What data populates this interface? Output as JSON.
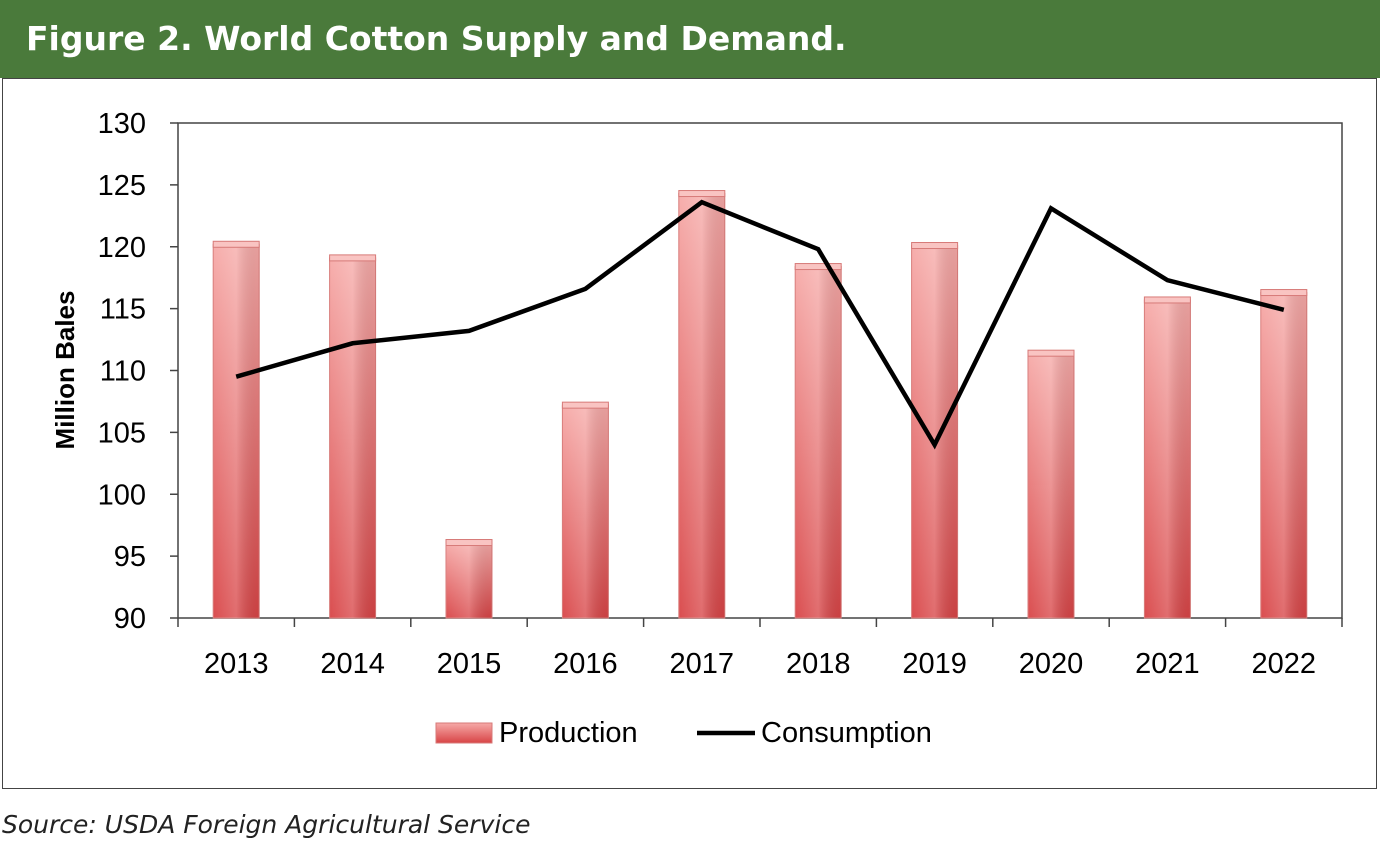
{
  "header": {
    "title": "Figure 2. World Cotton Supply and Demand."
  },
  "source": "Source: USDA Foreign Agricultural Service",
  "colors": {
    "header_bg": "#4a7a3b",
    "bar_top": "#f6aaa8",
    "bar_bottom": "#d84446",
    "line": "#000000"
  },
  "chart_data": {
    "type": "bar",
    "categories": [
      "2013",
      "2014",
      "2015",
      "2016",
      "2017",
      "2018",
      "2019",
      "2020",
      "2021",
      "2022"
    ],
    "series": [
      {
        "name": "Production",
        "type": "bar",
        "values": [
          120.2,
          119.1,
          96.1,
          107.2,
          124.3,
          118.4,
          120.1,
          111.4,
          115.7,
          116.3
        ]
      },
      {
        "name": "Consumption",
        "type": "line",
        "values": [
          109.5,
          112.2,
          113.2,
          116.6,
          123.6,
          119.8,
          104.0,
          123.1,
          117.3,
          114.9
        ]
      }
    ],
    "ylabel": "Million Bales",
    "xlabel": "",
    "ylim": [
      90,
      130
    ],
    "yticks": [
      90,
      95,
      100,
      105,
      110,
      115,
      120,
      125,
      130
    ],
    "grid": false,
    "legend": "bottom"
  }
}
